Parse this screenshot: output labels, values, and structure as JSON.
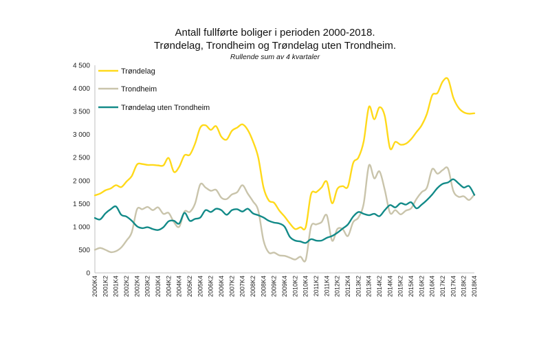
{
  "chart_data": {
    "type": "line",
    "title_line1": "Antall fullførte boliger i perioden 2000-2018.",
    "title_line2": "Trøndelag, Trondheim og Trøndelag uten Trondheim.",
    "subtitle": "Rullende sum av 4 kvartaler",
    "xlabel": "",
    "ylabel": "",
    "ylim": [
      0,
      4500
    ],
    "yticks": [
      0,
      500,
      1000,
      1500,
      2000,
      2500,
      3000,
      3500,
      4000,
      4500
    ],
    "ytick_labels": [
      "0",
      "500",
      "1 000",
      "1 500",
      "2 000",
      "2 500",
      "3 000",
      "3 500",
      "4 000",
      "4 500"
    ],
    "x_tick_labels": [
      "2000K4",
      "2001K2",
      "2001K4",
      "2002K2",
      "2002K4",
      "2003K2",
      "2003K4",
      "2004K2",
      "2004K4",
      "2005K2",
      "2005K4",
      "2006K2",
      "2006K4",
      "2007K2",
      "2007K4",
      "2008K2",
      "2008K4",
      "2009K2",
      "2009K4",
      "2010K2",
      "2010K4",
      "2011K2",
      "2011K4",
      "2012K2",
      "2012K4",
      "2013K2",
      "2013K4",
      "2014K2",
      "2014K4",
      "2015K2",
      "2015K4",
      "2016K2",
      "2016K4",
      "2017K2",
      "2017K4",
      "2018K2",
      "2018K4"
    ],
    "x_values": [
      2000.75,
      2001.0,
      2001.25,
      2001.5,
      2001.75,
      2002.0,
      2002.25,
      2002.5,
      2002.75,
      2003.0,
      2003.25,
      2003.5,
      2003.75,
      2004.0,
      2004.25,
      2004.5,
      2004.75,
      2005.0,
      2005.25,
      2005.5,
      2005.75,
      2006.0,
      2006.25,
      2006.5,
      2006.75,
      2007.0,
      2007.25,
      2007.5,
      2007.75,
      2008.0,
      2008.25,
      2008.5,
      2008.75,
      2009.0,
      2009.25,
      2009.5,
      2009.75,
      2010.0,
      2010.25,
      2010.5,
      2010.75,
      2011.0,
      2011.25,
      2011.5,
      2011.75,
      2012.0,
      2012.25,
      2012.5,
      2012.75,
      2013.0,
      2013.25,
      2013.5,
      2013.75,
      2014.0,
      2014.25,
      2014.5,
      2014.75,
      2015.0,
      2015.25,
      2015.5,
      2015.75,
      2016.0,
      2016.25,
      2016.5,
      2016.75,
      2017.0,
      2017.25,
      2017.5,
      2017.75,
      2018.0,
      2018.25,
      2018.5,
      2018.75
    ],
    "series": [
      {
        "name": "Trøndelag",
        "color": "#ffd91a",
        "values": [
          1680,
          1720,
          1790,
          1830,
          1900,
          1860,
          1980,
          2100,
          2350,
          2360,
          2340,
          2340,
          2330,
          2330,
          2490,
          2190,
          2300,
          2550,
          2560,
          2800,
          3150,
          3200,
          3100,
          3180,
          2950,
          2890,
          3080,
          3150,
          3220,
          3100,
          2850,
          2500,
          1850,
          1570,
          1520,
          1350,
          1220,
          1070,
          950,
          990,
          990,
          1700,
          1750,
          1850,
          1980,
          1510,
          1820,
          1880,
          1870,
          2380,
          2500,
          2850,
          3600,
          3330,
          3590,
          3400,
          2700,
          2840,
          2780,
          2800,
          2900,
          3050,
          3200,
          3450,
          3850,
          3900,
          4150,
          4200,
          3800,
          3580,
          3480,
          3450,
          3460
        ]
      },
      {
        "name": "Trondheim",
        "color": "#c9c4ab",
        "values": [
          500,
          540,
          500,
          450,
          470,
          550,
          700,
          880,
          1380,
          1380,
          1430,
          1360,
          1420,
          1280,
          1300,
          1100,
          1000,
          1330,
          1320,
          1500,
          1920,
          1850,
          1780,
          1800,
          1630,
          1600,
          1700,
          1750,
          1900,
          1720,
          1550,
          1350,
          700,
          440,
          440,
          380,
          370,
          330,
          290,
          350,
          280,
          1000,
          1050,
          1100,
          1250,
          700,
          950,
          950,
          800,
          1100,
          1200,
          1500,
          2330,
          2050,
          2200,
          1800,
          1300,
          1360,
          1270,
          1350,
          1400,
          1600,
          1750,
          1850,
          2250,
          2150,
          2230,
          2260,
          1780,
          1650,
          1660,
          1580,
          1700
        ]
      },
      {
        "name": "Trøndelag uten Trondheim",
        "color": "#128a88",
        "values": [
          1190,
          1160,
          1290,
          1380,
          1440,
          1260,
          1220,
          1130,
          1010,
          970,
          990,
          950,
          930,
          990,
          1120,
          1130,
          1070,
          1300,
          1130,
          1170,
          1200,
          1360,
          1320,
          1390,
          1360,
          1260,
          1360,
          1380,
          1330,
          1390,
          1290,
          1250,
          1200,
          1130,
          1090,
          1070,
          1000,
          780,
          700,
          680,
          650,
          730,
          700,
          700,
          760,
          800,
          870,
          960,
          1050,
          1220,
          1320,
          1280,
          1250,
          1280,
          1230,
          1360,
          1470,
          1420,
          1510,
          1480,
          1530,
          1400,
          1480,
          1580,
          1700,
          1840,
          1930,
          1960,
          2030,
          1940,
          1850,
          1880,
          1690
        ]
      }
    ],
    "legend_position": "top-left",
    "grid": false
  }
}
